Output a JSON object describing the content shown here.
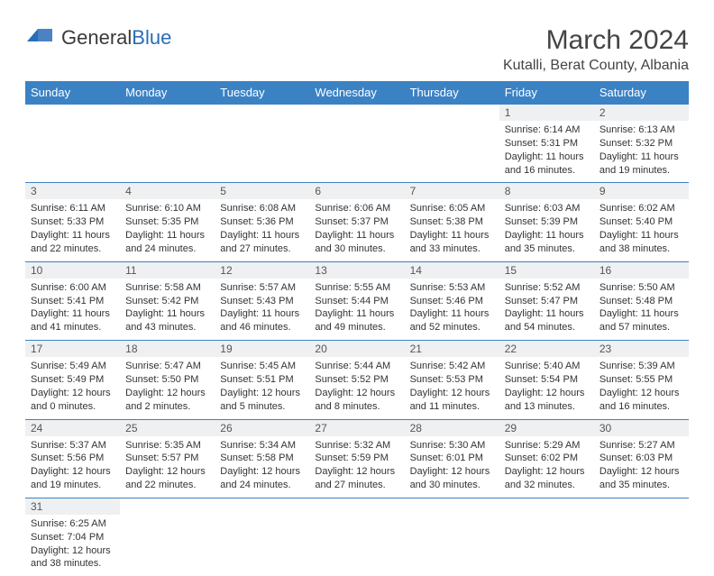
{
  "brand": {
    "part1": "General",
    "part2": "Blue"
  },
  "title": "March 2024",
  "subtitle": "Kutalli, Berat County, Albania",
  "day_headers": [
    "Sunday",
    "Monday",
    "Tuesday",
    "Wednesday",
    "Thursday",
    "Friday",
    "Saturday"
  ],
  "colors": {
    "header_bg": "#3b82c4",
    "header_text": "#ffffff",
    "daynum_bg": "#eef0f2",
    "border": "#3b82c4",
    "text": "#333333",
    "title_color": "#444444"
  },
  "weeks": [
    [
      null,
      null,
      null,
      null,
      null,
      {
        "n": "1",
        "sunrise": "6:14 AM",
        "sunset": "5:31 PM",
        "daylight": "11 hours and 16 minutes."
      },
      {
        "n": "2",
        "sunrise": "6:13 AM",
        "sunset": "5:32 PM",
        "daylight": "11 hours and 19 minutes."
      }
    ],
    [
      {
        "n": "3",
        "sunrise": "6:11 AM",
        "sunset": "5:33 PM",
        "daylight": "11 hours and 22 minutes."
      },
      {
        "n": "4",
        "sunrise": "6:10 AM",
        "sunset": "5:35 PM",
        "daylight": "11 hours and 24 minutes."
      },
      {
        "n": "5",
        "sunrise": "6:08 AM",
        "sunset": "5:36 PM",
        "daylight": "11 hours and 27 minutes."
      },
      {
        "n": "6",
        "sunrise": "6:06 AM",
        "sunset": "5:37 PM",
        "daylight": "11 hours and 30 minutes."
      },
      {
        "n": "7",
        "sunrise": "6:05 AM",
        "sunset": "5:38 PM",
        "daylight": "11 hours and 33 minutes."
      },
      {
        "n": "8",
        "sunrise": "6:03 AM",
        "sunset": "5:39 PM",
        "daylight": "11 hours and 35 minutes."
      },
      {
        "n": "9",
        "sunrise": "6:02 AM",
        "sunset": "5:40 PM",
        "daylight": "11 hours and 38 minutes."
      }
    ],
    [
      {
        "n": "10",
        "sunrise": "6:00 AM",
        "sunset": "5:41 PM",
        "daylight": "11 hours and 41 minutes."
      },
      {
        "n": "11",
        "sunrise": "5:58 AM",
        "sunset": "5:42 PM",
        "daylight": "11 hours and 43 minutes."
      },
      {
        "n": "12",
        "sunrise": "5:57 AM",
        "sunset": "5:43 PM",
        "daylight": "11 hours and 46 minutes."
      },
      {
        "n": "13",
        "sunrise": "5:55 AM",
        "sunset": "5:44 PM",
        "daylight": "11 hours and 49 minutes."
      },
      {
        "n": "14",
        "sunrise": "5:53 AM",
        "sunset": "5:46 PM",
        "daylight": "11 hours and 52 minutes."
      },
      {
        "n": "15",
        "sunrise": "5:52 AM",
        "sunset": "5:47 PM",
        "daylight": "11 hours and 54 minutes."
      },
      {
        "n": "16",
        "sunrise": "5:50 AM",
        "sunset": "5:48 PM",
        "daylight": "11 hours and 57 minutes."
      }
    ],
    [
      {
        "n": "17",
        "sunrise": "5:49 AM",
        "sunset": "5:49 PM",
        "daylight": "12 hours and 0 minutes."
      },
      {
        "n": "18",
        "sunrise": "5:47 AM",
        "sunset": "5:50 PM",
        "daylight": "12 hours and 2 minutes."
      },
      {
        "n": "19",
        "sunrise": "5:45 AM",
        "sunset": "5:51 PM",
        "daylight": "12 hours and 5 minutes."
      },
      {
        "n": "20",
        "sunrise": "5:44 AM",
        "sunset": "5:52 PM",
        "daylight": "12 hours and 8 minutes."
      },
      {
        "n": "21",
        "sunrise": "5:42 AM",
        "sunset": "5:53 PM",
        "daylight": "12 hours and 11 minutes."
      },
      {
        "n": "22",
        "sunrise": "5:40 AM",
        "sunset": "5:54 PM",
        "daylight": "12 hours and 13 minutes."
      },
      {
        "n": "23",
        "sunrise": "5:39 AM",
        "sunset": "5:55 PM",
        "daylight": "12 hours and 16 minutes."
      }
    ],
    [
      {
        "n": "24",
        "sunrise": "5:37 AM",
        "sunset": "5:56 PM",
        "daylight": "12 hours and 19 minutes."
      },
      {
        "n": "25",
        "sunrise": "5:35 AM",
        "sunset": "5:57 PM",
        "daylight": "12 hours and 22 minutes."
      },
      {
        "n": "26",
        "sunrise": "5:34 AM",
        "sunset": "5:58 PM",
        "daylight": "12 hours and 24 minutes."
      },
      {
        "n": "27",
        "sunrise": "5:32 AM",
        "sunset": "5:59 PM",
        "daylight": "12 hours and 27 minutes."
      },
      {
        "n": "28",
        "sunrise": "5:30 AM",
        "sunset": "6:01 PM",
        "daylight": "12 hours and 30 minutes."
      },
      {
        "n": "29",
        "sunrise": "5:29 AM",
        "sunset": "6:02 PM",
        "daylight": "12 hours and 32 minutes."
      },
      {
        "n": "30",
        "sunrise": "5:27 AM",
        "sunset": "6:03 PM",
        "daylight": "12 hours and 35 minutes."
      }
    ],
    [
      {
        "n": "31",
        "sunrise": "6:25 AM",
        "sunset": "7:04 PM",
        "daylight": "12 hours and 38 minutes."
      },
      null,
      null,
      null,
      null,
      null,
      null
    ]
  ]
}
